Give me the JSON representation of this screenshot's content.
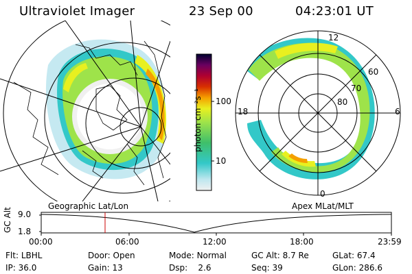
{
  "header": {
    "title": "Ultraviolet Imager",
    "date": "23 Sep 00",
    "time": "04:23:01 UT"
  },
  "colorbar": {
    "unit_label": "photon cm⁻²s⁻¹",
    "ticks": [
      "100",
      "10"
    ]
  },
  "left_panel": {
    "label": "Geographic Lat/Lon"
  },
  "right_panel": {
    "label": "Apex MLat/MLT",
    "mlt_labels": {
      "top": "12",
      "left": "18",
      "right": "6",
      "bottom": "0"
    },
    "mlat_labels": [
      "60",
      "70",
      "80"
    ]
  },
  "altitude_strip": {
    "ylabel": "GC Alt",
    "yticks": [
      "9.0",
      "1.8"
    ],
    "xticks": [
      "00:00",
      "06:00",
      "12:00",
      "18:00",
      "23:59"
    ]
  },
  "footer": {
    "row1": [
      {
        "label": "Flt:",
        "value": "LBHL"
      },
      {
        "label": "Door:",
        "value": "Open"
      },
      {
        "label": "Mode:",
        "value": "Normal"
      },
      {
        "label": "GC Alt:",
        "value": "8.7 Re"
      },
      {
        "label": "GLat:",
        "value": "67.4"
      }
    ],
    "row2": [
      {
        "label": "IP:",
        "value": "36.0"
      },
      {
        "label": "Gain:",
        "value": "13"
      },
      {
        "label": "Dsp:",
        "value": "2.6"
      },
      {
        "label": "Seq:",
        "value": "39"
      },
      {
        "label": "GLon:",
        "value": "286.6"
      }
    ]
  },
  "colors": {
    "marker": "#cc0000",
    "aurora_outer": "#33c8c8",
    "aurora_mid": "#9ee34a",
    "aurora_inner": "#e8f020"
  }
}
